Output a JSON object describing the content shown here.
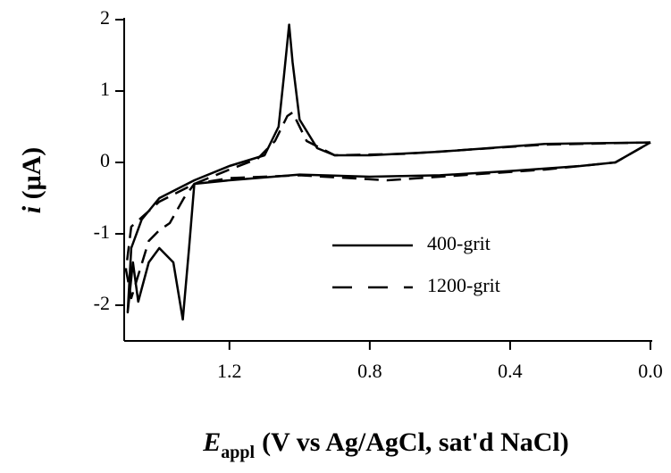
{
  "chart_data": {
    "type": "line",
    "xlabel": {
      "symbol": "E",
      "subscript": "appl",
      "text": "(V vs Ag/AgCl, sat'd NaCl)"
    },
    "ylabel": {
      "symbol": "i",
      "text": "(μA)"
    },
    "xlim": [
      1.5,
      0
    ],
    "xticks": [
      1.2,
      0.8,
      0.4,
      {
        "value": 0,
        "label": "0.0"
      }
    ],
    "ylim": [
      -2.5,
      2
    ],
    "yticks": [
      2,
      1,
      0,
      -1,
      -2
    ],
    "legend": "lower right",
    "series": [
      {
        "name": "400-grit",
        "color": "#000000",
        "dash": "solid",
        "x": [
          0.0,
          0.3,
          0.6,
          0.8,
          0.9,
          0.95,
          1.0,
          1.02,
          1.03,
          1.045,
          1.06,
          1.1,
          1.2,
          1.3,
          1.4,
          1.45,
          1.48,
          1.49,
          1.475,
          1.46,
          1.43,
          1.4,
          1.36,
          1.333,
          1.315,
          1.3,
          1.2,
          1.0,
          0.8,
          0.6,
          0.4,
          0.2,
          0.1,
          0.0
        ],
        "values": [
          0.28,
          0.26,
          0.15,
          0.1,
          0.1,
          0.2,
          0.6,
          1.4,
          1.93,
          1.2,
          0.5,
          0.1,
          -0.05,
          -0.25,
          -0.5,
          -0.8,
          -1.2,
          -2.1,
          -1.4,
          -1.95,
          -1.4,
          -1.2,
          -1.4,
          -2.2,
          -1.2,
          -0.3,
          -0.25,
          -0.17,
          -0.2,
          -0.18,
          -0.12,
          -0.05,
          0.0,
          0.28
        ]
      },
      {
        "name": "1200-grit",
        "color": "#000000",
        "dash": "dashed",
        "x": [
          0.0,
          0.3,
          0.7,
          0.9,
          0.98,
          1.02,
          1.035,
          1.07,
          1.12,
          1.2,
          1.3,
          1.4,
          1.48,
          1.495,
          1.48,
          1.43,
          1.4,
          1.37,
          1.33,
          1.3,
          1.2,
          1.0,
          0.75,
          0.6,
          0.3,
          0.1,
          0.0
        ],
        "values": [
          0.28,
          0.25,
          0.12,
          0.1,
          0.3,
          0.7,
          0.65,
          0.3,
          0.05,
          -0.1,
          -0.3,
          -0.55,
          -0.9,
          -1.5,
          -1.9,
          -1.1,
          -0.95,
          -0.85,
          -0.5,
          -0.3,
          -0.22,
          -0.18,
          -0.25,
          -0.2,
          -0.1,
          0.0,
          0.28
        ]
      }
    ]
  }
}
